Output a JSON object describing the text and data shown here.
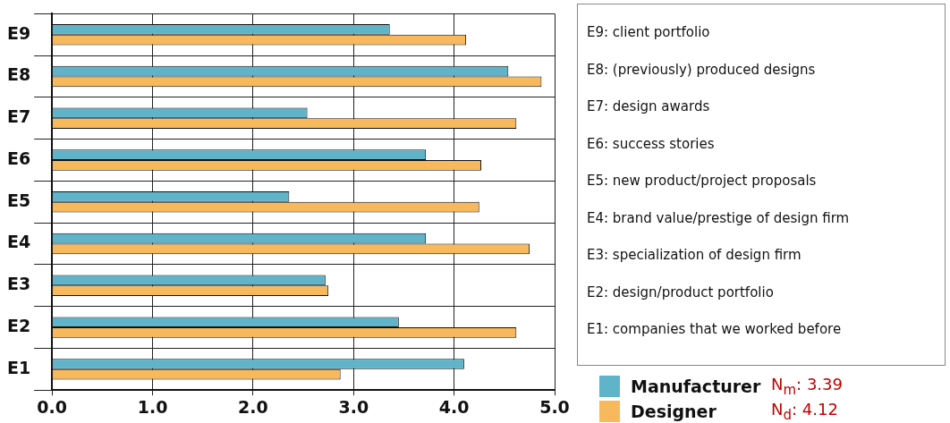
{
  "chart_data": {
    "type": "bar",
    "orientation": "horizontal",
    "categories": [
      "E9",
      "E8",
      "E7",
      "E6",
      "E5",
      "E4",
      "E3",
      "E2",
      "E1"
    ],
    "series": [
      {
        "name": "Manufacturer",
        "color": "#5fb4ca",
        "values": [
          3.36,
          4.54,
          2.54,
          3.72,
          2.36,
          3.72,
          2.72,
          3.45,
          4.1
        ]
      },
      {
        "name": "Designer",
        "color": "#f8b95c",
        "values": [
          4.12,
          4.87,
          4.62,
          4.27,
          4.25,
          4.75,
          2.75,
          4.62,
          2.87
        ]
      }
    ],
    "xlim": [
      0,
      5
    ],
    "xticks": [
      {
        "value": 0,
        "label": "0.0"
      },
      {
        "value": 1,
        "label": "1.0"
      },
      {
        "value": 2,
        "label": "2.0"
      },
      {
        "value": 3,
        "label": "3.0"
      },
      {
        "value": 4,
        "label": "4.0"
      },
      {
        "value": 5,
        "label": "5.0"
      }
    ],
    "grid": true,
    "legend": "bottom right",
    "annotations": [
      "E9: client portfolio",
      "E8: (previously) produced designs",
      "E7: design awards",
      "E6: success stories",
      "E5: new product/project proposals",
      "E4: brand value/prestige of design firm",
      "E3: specialization of design firm",
      "E2: design/product portfolio",
      "E1: companies that we worked before",
      "N$_{m}$: 3.39",
      "N$_{d}$: 4.12"
    ]
  }
}
